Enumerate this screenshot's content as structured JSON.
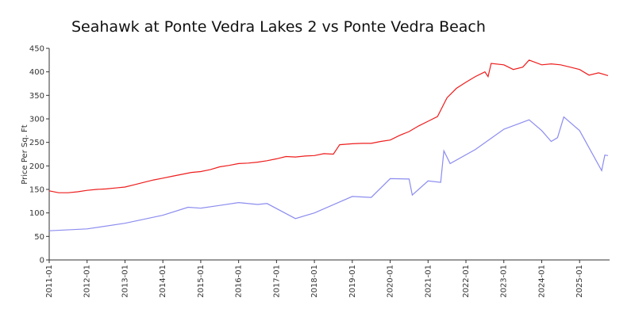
{
  "chart_data": {
    "type": "line",
    "title": "Seahawk at Ponte Vedra Lakes 2 vs Ponte Vedra Beach",
    "y_label": "Price Per Sq. Ft",
    "xlim": [
      "2011-01",
      "2025-10"
    ],
    "xticks": [
      "2011-01",
      "2012-01",
      "2013-01",
      "2014-01",
      "2015-01",
      "2016-01",
      "2017-01",
      "2018-01",
      "2019-01",
      "2020-01",
      "2021-01",
      "2022-01",
      "2023-01",
      "2024-01",
      "2025-01"
    ],
    "ylim": [
      0,
      450
    ],
    "yticks": [
      0,
      50,
      100,
      150,
      200,
      250,
      300,
      350,
      400,
      450
    ],
    "series": [
      {
        "color": "#ee1c1c",
        "x": [
          "2011-01",
          "2011-04",
          "2011-07",
          "2011-10",
          "2012-01",
          "2012-04",
          "2012-07",
          "2012-10",
          "2013-01",
          "2013-04",
          "2013-07",
          "2013-10",
          "2014-01",
          "2014-04",
          "2014-07",
          "2014-10",
          "2015-01",
          "2015-04",
          "2015-07",
          "2015-10",
          "2016-01",
          "2016-04",
          "2016-07",
          "2016-10",
          "2017-01",
          "2017-04",
          "2017-07",
          "2017-10",
          "2018-01",
          "2018-04",
          "2018-07",
          "2018-09",
          "2019-01",
          "2019-04",
          "2019-07",
          "2019-10",
          "2020-01",
          "2020-04",
          "2020-07",
          "2020-10",
          "2021-01",
          "2021-04",
          "2021-07",
          "2021-10",
          "2022-01",
          "2022-04",
          "2022-07",
          "2022-08",
          "2022-09",
          "2023-01",
          "2023-04",
          "2023-07",
          "2023-09",
          "2024-01",
          "2024-04",
          "2024-07",
          "2024-10",
          "2025-01",
          "2025-04",
          "2025-07",
          "2025-10"
        ],
        "values": [
          147,
          143,
          143,
          145,
          148,
          150,
          151,
          153,
          155,
          160,
          165,
          170,
          174,
          178,
          182,
          186,
          188,
          192,
          198,
          201,
          205,
          206,
          208,
          211,
          215,
          220,
          219,
          221,
          222,
          226,
          225,
          245,
          247,
          248,
          248,
          252,
          255,
          265,
          273,
          285,
          295,
          305,
          345,
          365,
          378,
          390,
          400,
          390,
          418,
          415,
          405,
          410,
          425,
          415,
          417,
          415,
          410,
          405,
          393,
          398,
          392
        ]
      },
      {
        "color": "#8c8cf0",
        "x": [
          "2011-01",
          "2012-01",
          "2013-01",
          "2014-01",
          "2014-09",
          "2015-01",
          "2015-07",
          "2016-01",
          "2016-07",
          "2016-10",
          "2017-07",
          "2018-01",
          "2019-01",
          "2019-07",
          "2020-01",
          "2020-07",
          "2020-08",
          "2021-01",
          "2021-05",
          "2021-06",
          "2021-08",
          "2022-04",
          "2023-01",
          "2023-09",
          "2024-01",
          "2024-04",
          "2024-06",
          "2024-08",
          "2025-01",
          "2025-08",
          "2025-09",
          "2025-10"
        ],
        "values": [
          62,
          66,
          78,
          95,
          112,
          110,
          116,
          122,
          118,
          120,
          88,
          100,
          135,
          133,
          173,
          172,
          138,
          168,
          165,
          232,
          205,
          235,
          278,
          298,
          275,
          252,
          260,
          304,
          275,
          190,
          223,
          222
        ]
      }
    ]
  }
}
